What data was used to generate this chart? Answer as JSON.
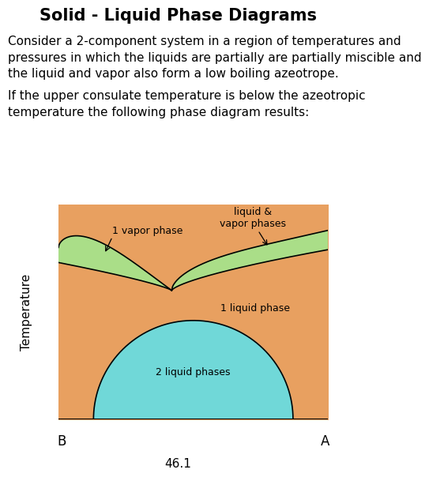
{
  "title": "Solid - Liquid Phase Diagrams",
  "title_fontsize": 15,
  "title_fontweight": "bold",
  "para1_line1": "Consider a 2-component system in a region of temperatures and",
  "para1_line2": "pressures in which the liquids are partially are partially miscible and",
  "para1_line3": "the liquid and vapor also form a low boiling azeotrope.",
  "para2_line1": "If the upper consulate temperature is below the azeotropic",
  "para2_line2": "temperature the following phase diagram results:",
  "para_fontsize": 11,
  "label_B": "B",
  "label_A": "A",
  "label_temp": "Temperature",
  "label_1vapor": "1 vapor phase",
  "label_2liquid": "2 liquid phases",
  "label_1liquid": "1 liquid phase",
  "label_liquidvapor": "liquid &\nvapor phases",
  "color_orange": "#E8A060",
  "color_green": "#AADE88",
  "color_cyan": "#70D8D8",
  "color_white": "#FFFFFF",
  "page_number": "46.1",
  "background": "#FFFFFF"
}
